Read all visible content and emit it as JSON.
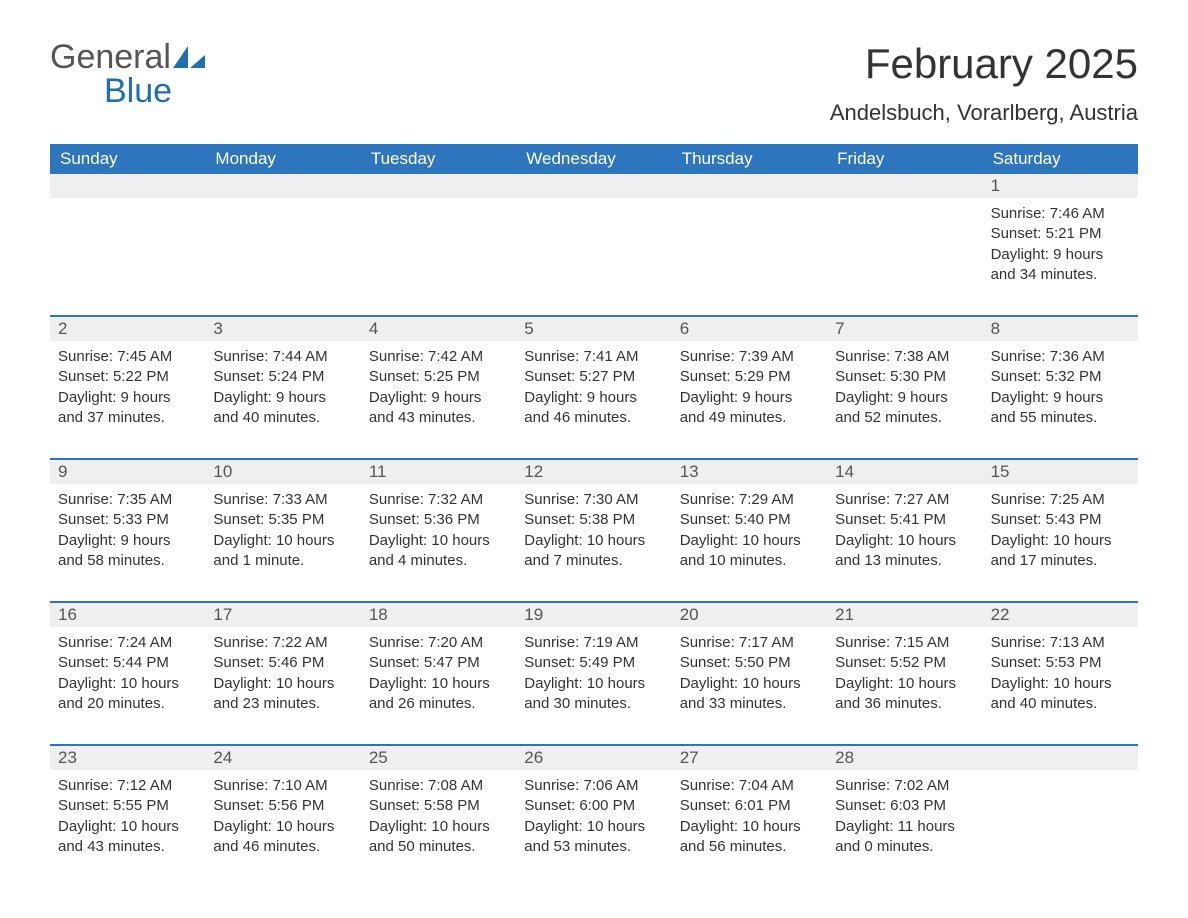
{
  "branding": {
    "logo_word1": "General",
    "logo_word2": "Blue",
    "logo_color_dark": "#555555",
    "logo_color_blue": "#1f6fb0"
  },
  "header": {
    "title": "February 2025",
    "location": "Andelsbuch, Vorarlberg, Austria"
  },
  "colors": {
    "header_bg": "#2d76bd",
    "header_text": "#ffffff",
    "daynum_bg": "#efefef",
    "body_text": "#333333",
    "page_bg": "#ffffff"
  },
  "days_of_week": [
    "Sunday",
    "Monday",
    "Tuesday",
    "Wednesday",
    "Thursday",
    "Friday",
    "Saturday"
  ],
  "weeks": [
    {
      "nums": [
        "",
        "",
        "",
        "",
        "",
        "",
        "1"
      ],
      "cells": [
        null,
        null,
        null,
        null,
        null,
        null,
        {
          "sunrise": "Sunrise: 7:46 AM",
          "sunset": "Sunset: 5:21 PM",
          "daylight1": "Daylight: 9 hours",
          "daylight2": "and 34 minutes."
        }
      ]
    },
    {
      "nums": [
        "2",
        "3",
        "4",
        "5",
        "6",
        "7",
        "8"
      ],
      "cells": [
        {
          "sunrise": "Sunrise: 7:45 AM",
          "sunset": "Sunset: 5:22 PM",
          "daylight1": "Daylight: 9 hours",
          "daylight2": "and 37 minutes."
        },
        {
          "sunrise": "Sunrise: 7:44 AM",
          "sunset": "Sunset: 5:24 PM",
          "daylight1": "Daylight: 9 hours",
          "daylight2": "and 40 minutes."
        },
        {
          "sunrise": "Sunrise: 7:42 AM",
          "sunset": "Sunset: 5:25 PM",
          "daylight1": "Daylight: 9 hours",
          "daylight2": "and 43 minutes."
        },
        {
          "sunrise": "Sunrise: 7:41 AM",
          "sunset": "Sunset: 5:27 PM",
          "daylight1": "Daylight: 9 hours",
          "daylight2": "and 46 minutes."
        },
        {
          "sunrise": "Sunrise: 7:39 AM",
          "sunset": "Sunset: 5:29 PM",
          "daylight1": "Daylight: 9 hours",
          "daylight2": "and 49 minutes."
        },
        {
          "sunrise": "Sunrise: 7:38 AM",
          "sunset": "Sunset: 5:30 PM",
          "daylight1": "Daylight: 9 hours",
          "daylight2": "and 52 minutes."
        },
        {
          "sunrise": "Sunrise: 7:36 AM",
          "sunset": "Sunset: 5:32 PM",
          "daylight1": "Daylight: 9 hours",
          "daylight2": "and 55 minutes."
        }
      ]
    },
    {
      "nums": [
        "9",
        "10",
        "11",
        "12",
        "13",
        "14",
        "15"
      ],
      "cells": [
        {
          "sunrise": "Sunrise: 7:35 AM",
          "sunset": "Sunset: 5:33 PM",
          "daylight1": "Daylight: 9 hours",
          "daylight2": "and 58 minutes."
        },
        {
          "sunrise": "Sunrise: 7:33 AM",
          "sunset": "Sunset: 5:35 PM",
          "daylight1": "Daylight: 10 hours",
          "daylight2": "and 1 minute."
        },
        {
          "sunrise": "Sunrise: 7:32 AM",
          "sunset": "Sunset: 5:36 PM",
          "daylight1": "Daylight: 10 hours",
          "daylight2": "and 4 minutes."
        },
        {
          "sunrise": "Sunrise: 7:30 AM",
          "sunset": "Sunset: 5:38 PM",
          "daylight1": "Daylight: 10 hours",
          "daylight2": "and 7 minutes."
        },
        {
          "sunrise": "Sunrise: 7:29 AM",
          "sunset": "Sunset: 5:40 PM",
          "daylight1": "Daylight: 10 hours",
          "daylight2": "and 10 minutes."
        },
        {
          "sunrise": "Sunrise: 7:27 AM",
          "sunset": "Sunset: 5:41 PM",
          "daylight1": "Daylight: 10 hours",
          "daylight2": "and 13 minutes."
        },
        {
          "sunrise": "Sunrise: 7:25 AM",
          "sunset": "Sunset: 5:43 PM",
          "daylight1": "Daylight: 10 hours",
          "daylight2": "and 17 minutes."
        }
      ]
    },
    {
      "nums": [
        "16",
        "17",
        "18",
        "19",
        "20",
        "21",
        "22"
      ],
      "cells": [
        {
          "sunrise": "Sunrise: 7:24 AM",
          "sunset": "Sunset: 5:44 PM",
          "daylight1": "Daylight: 10 hours",
          "daylight2": "and 20 minutes."
        },
        {
          "sunrise": "Sunrise: 7:22 AM",
          "sunset": "Sunset: 5:46 PM",
          "daylight1": "Daylight: 10 hours",
          "daylight2": "and 23 minutes."
        },
        {
          "sunrise": "Sunrise: 7:20 AM",
          "sunset": "Sunset: 5:47 PM",
          "daylight1": "Daylight: 10 hours",
          "daylight2": "and 26 minutes."
        },
        {
          "sunrise": "Sunrise: 7:19 AM",
          "sunset": "Sunset: 5:49 PM",
          "daylight1": "Daylight: 10 hours",
          "daylight2": "and 30 minutes."
        },
        {
          "sunrise": "Sunrise: 7:17 AM",
          "sunset": "Sunset: 5:50 PM",
          "daylight1": "Daylight: 10 hours",
          "daylight2": "and 33 minutes."
        },
        {
          "sunrise": "Sunrise: 7:15 AM",
          "sunset": "Sunset: 5:52 PM",
          "daylight1": "Daylight: 10 hours",
          "daylight2": "and 36 minutes."
        },
        {
          "sunrise": "Sunrise: 7:13 AM",
          "sunset": "Sunset: 5:53 PM",
          "daylight1": "Daylight: 10 hours",
          "daylight2": "and 40 minutes."
        }
      ]
    },
    {
      "nums": [
        "23",
        "24",
        "25",
        "26",
        "27",
        "28",
        ""
      ],
      "cells": [
        {
          "sunrise": "Sunrise: 7:12 AM",
          "sunset": "Sunset: 5:55 PM",
          "daylight1": "Daylight: 10 hours",
          "daylight2": "and 43 minutes."
        },
        {
          "sunrise": "Sunrise: 7:10 AM",
          "sunset": "Sunset: 5:56 PM",
          "daylight1": "Daylight: 10 hours",
          "daylight2": "and 46 minutes."
        },
        {
          "sunrise": "Sunrise: 7:08 AM",
          "sunset": "Sunset: 5:58 PM",
          "daylight1": "Daylight: 10 hours",
          "daylight2": "and 50 minutes."
        },
        {
          "sunrise": "Sunrise: 7:06 AM",
          "sunset": "Sunset: 6:00 PM",
          "daylight1": "Daylight: 10 hours",
          "daylight2": "and 53 minutes."
        },
        {
          "sunrise": "Sunrise: 7:04 AM",
          "sunset": "Sunset: 6:01 PM",
          "daylight1": "Daylight: 10 hours",
          "daylight2": "and 56 minutes."
        },
        {
          "sunrise": "Sunrise: 7:02 AM",
          "sunset": "Sunset: 6:03 PM",
          "daylight1": "Daylight: 11 hours",
          "daylight2": "and 0 minutes."
        },
        null
      ]
    }
  ]
}
